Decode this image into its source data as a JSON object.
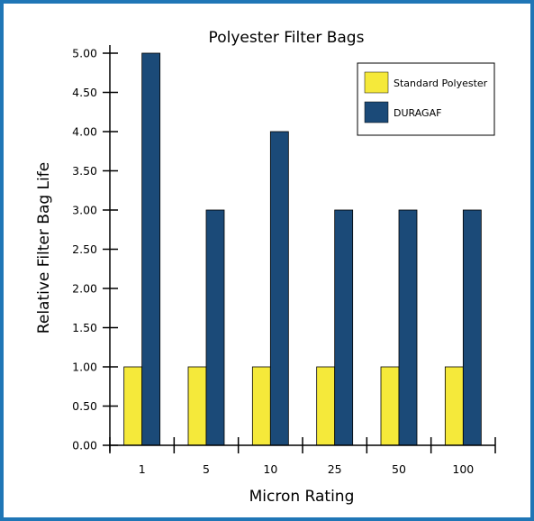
{
  "colors": {
    "frame": "#1f76b6",
    "standard": "#f5e93a",
    "duragaf": "#1b4a78"
  },
  "chart_data": {
    "type": "bar",
    "title": "Polyester Filter Bags",
    "xlabel": "Micron Rating",
    "ylabel": "Relative Filter Bag Life",
    "categories": [
      "1",
      "5",
      "10",
      "25",
      "50",
      "100"
    ],
    "series": [
      {
        "name": "Standard Polyester",
        "color": "#f5e93a",
        "values": [
          1,
          1,
          1,
          1,
          1,
          1
        ]
      },
      {
        "name": "DURAGAF",
        "color": "#1b4a78",
        "values": [
          5,
          3,
          4,
          3,
          3,
          3
        ]
      }
    ],
    "ylim": [
      0,
      5
    ],
    "yticks": [
      "0.00",
      "0.50",
      "1.00",
      "1.50",
      "2.00",
      "2.50",
      "3.00",
      "3.50",
      "4.00",
      "4.50",
      "5.00"
    ],
    "legend_position": "top-right",
    "grid": false
  }
}
